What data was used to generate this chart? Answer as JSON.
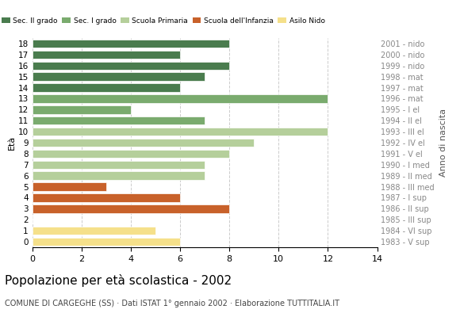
{
  "ages": [
    18,
    17,
    16,
    15,
    14,
    13,
    12,
    11,
    10,
    9,
    8,
    7,
    6,
    5,
    4,
    3,
    2,
    1,
    0
  ],
  "right_labels": [
    "1983 - V sup",
    "1984 - VI sup",
    "1985 - III sup",
    "1986 - II sup",
    "1987 - I sup",
    "1988 - III med",
    "1989 - II med",
    "1990 - I med",
    "1991 - V el",
    "1992 - IV el",
    "1993 - III el",
    "1994 - II el",
    "1995 - I el",
    "1996 - mat",
    "1997 - mat",
    "1998 - mat",
    "1999 - nido",
    "2000 - nido",
    "2001 - nido"
  ],
  "values": [
    8,
    6,
    8,
    7,
    6,
    12,
    4,
    7,
    12,
    9,
    8,
    7,
    7,
    3,
    6,
    8,
    0,
    5,
    6
  ],
  "color_map": {
    "18": "#4a7c4e",
    "17": "#4a7c4e",
    "16": "#4a7c4e",
    "15": "#4a7c4e",
    "14": "#4a7c4e",
    "13": "#7aab6e",
    "12": "#7aab6e",
    "11": "#7aab6e",
    "10": "#b5cf9b",
    "9": "#b5cf9b",
    "8": "#b5cf9b",
    "7": "#b5cf9b",
    "6": "#b5cf9b",
    "5": "#c8612a",
    "4": "#c8612a",
    "3": "#c8612a",
    "2": "#f5e08a",
    "1": "#f5e08a",
    "0": "#f5e08a"
  },
  "legend_items": [
    {
      "label": "Sec. II grado",
      "color": "#4a7c4e"
    },
    {
      "label": "Sec. I grado",
      "color": "#7aab6e"
    },
    {
      "label": "Scuola Primaria",
      "color": "#b5cf9b"
    },
    {
      "label": "Scuola dell'Infanzia",
      "color": "#c8612a"
    },
    {
      "label": "Asilo Nido",
      "color": "#f5e08a"
    }
  ],
  "title": "Popolazione per età scolastica - 2002",
  "subtitle": "COMUNE DI CARGEGHE (SS) · Dati ISTAT 1° gennaio 2002 · Elaborazione TUTTITALIA.IT",
  "ylabel_left": "Età",
  "ylabel_right": "Anno di nascita",
  "xlim": [
    0,
    14
  ],
  "xticks": [
    0,
    2,
    4,
    6,
    8,
    10,
    12,
    14
  ],
  "bar_height": 0.75,
  "background_color": "#ffffff",
  "grid_color": "#cccccc"
}
